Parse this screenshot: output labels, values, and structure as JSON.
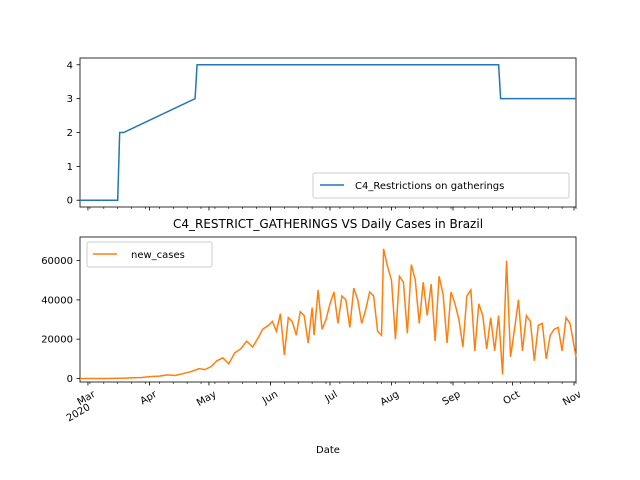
{
  "figure": {
    "title": "C4_RESTRICT_GATHERINGS VS Daily Cases in Brazil",
    "xlabel": "Date"
  },
  "colors": {
    "series1": "#1f77b4",
    "series2": "#ff7f0e"
  },
  "chart_data": [
    {
      "type": "line",
      "title": "",
      "xlabel": "",
      "ylabel": "",
      "xlim": [
        "2020-02-26",
        "2020-11-02"
      ],
      "ylim": [
        -0.2,
        4.2
      ],
      "yticks": [
        0,
        1,
        2,
        3,
        4
      ],
      "legend": "lower-right",
      "grid": false,
      "series": [
        {
          "name": "C4_Restrictions on gatherings",
          "x": [
            "2020-02-26",
            "2020-03-16",
            "2020-03-17",
            "2020-03-19",
            "2020-04-24",
            "2020-04-25",
            "2020-09-24",
            "2020-09-25",
            "2020-11-02"
          ],
          "values": [
            0,
            0,
            2,
            2,
            3,
            4,
            4,
            3,
            3
          ]
        }
      ]
    },
    {
      "type": "line",
      "title": "C4_RESTRICT_GATHERINGS VS Daily Cases in Brazil",
      "xlabel": "Date",
      "ylabel": "",
      "xlim": [
        "2020-02-26",
        "2020-11-02"
      ],
      "ylim": [
        -1800,
        72000
      ],
      "yticks": [
        0,
        20000,
        40000,
        60000
      ],
      "legend": "upper-left",
      "grid": false,
      "xticks": [
        {
          "date": "2020-03-01",
          "label": "Mar",
          "label2": "2020"
        },
        {
          "date": "2020-04-01",
          "label": "Apr"
        },
        {
          "date": "2020-05-01",
          "label": "May"
        },
        {
          "date": "2020-06-01",
          "label": "Jun"
        },
        {
          "date": "2020-07-01",
          "label": "Jul"
        },
        {
          "date": "2020-08-01",
          "label": "Aug"
        },
        {
          "date": "2020-09-01",
          "label": "Sep"
        },
        {
          "date": "2020-10-01",
          "label": "Oct"
        },
        {
          "date": "2020-11-01",
          "label": "Nov"
        }
      ],
      "series": [
        {
          "name": "new_cases",
          "x": [
            "2020-02-26",
            "2020-03-10",
            "2020-03-20",
            "2020-03-28",
            "2020-04-02",
            "2020-04-06",
            "2020-04-10",
            "2020-04-14",
            "2020-04-18",
            "2020-04-22",
            "2020-04-26",
            "2020-04-29",
            "2020-05-02",
            "2020-05-05",
            "2020-05-08",
            "2020-05-11",
            "2020-05-14",
            "2020-05-17",
            "2020-05-20",
            "2020-05-23",
            "2020-05-26",
            "2020-05-28",
            "2020-05-31",
            "2020-06-02",
            "2020-06-04",
            "2020-06-06",
            "2020-06-08",
            "2020-06-10",
            "2020-06-12",
            "2020-06-14",
            "2020-06-16",
            "2020-06-18",
            "2020-06-20",
            "2020-06-22",
            "2020-06-23",
            "2020-06-25",
            "2020-06-27",
            "2020-06-29",
            "2020-07-01",
            "2020-07-03",
            "2020-07-05",
            "2020-07-07",
            "2020-07-09",
            "2020-07-11",
            "2020-07-13",
            "2020-07-15",
            "2020-07-17",
            "2020-07-19",
            "2020-07-21",
            "2020-07-23",
            "2020-07-25",
            "2020-07-27",
            "2020-07-28",
            "2020-07-30",
            "2020-08-01",
            "2020-08-03",
            "2020-08-05",
            "2020-08-07",
            "2020-08-09",
            "2020-08-11",
            "2020-08-13",
            "2020-08-15",
            "2020-08-17",
            "2020-08-19",
            "2020-08-21",
            "2020-08-23",
            "2020-08-25",
            "2020-08-27",
            "2020-08-29",
            "2020-08-31",
            "2020-09-02",
            "2020-09-04",
            "2020-09-06",
            "2020-09-08",
            "2020-09-10",
            "2020-09-12",
            "2020-09-14",
            "2020-09-16",
            "2020-09-18",
            "2020-09-20",
            "2020-09-22",
            "2020-09-24",
            "2020-09-26",
            "2020-09-28",
            "2020-09-30",
            "2020-10-02",
            "2020-10-04",
            "2020-10-06",
            "2020-10-08",
            "2020-10-10",
            "2020-10-12",
            "2020-10-14",
            "2020-10-16",
            "2020-10-18",
            "2020-10-20",
            "2020-10-22",
            "2020-10-24",
            "2020-10-26",
            "2020-10-28",
            "2020-10-30",
            "2020-11-02"
          ],
          "values": [
            0,
            0,
            200,
            500,
            1000,
            1200,
            1800,
            1500,
            2500,
            3500,
            5000,
            4500,
            6000,
            9000,
            10500,
            7500,
            13000,
            15000,
            19000,
            16000,
            21000,
            25000,
            27000,
            29000,
            24000,
            33000,
            12000,
            31000,
            29000,
            22000,
            34000,
            32000,
            18000,
            36000,
            22000,
            45000,
            25000,
            30000,
            38000,
            44000,
            28000,
            42000,
            40000,
            26000,
            46000,
            40000,
            28000,
            35000,
            44000,
            42000,
            24000,
            22000,
            66000,
            57000,
            50000,
            20000,
            52000,
            49000,
            23000,
            58000,
            50000,
            28000,
            49000,
            32000,
            48000,
            19000,
            52000,
            43000,
            18000,
            44000,
            38000,
            30000,
            16000,
            42000,
            45000,
            14000,
            38000,
            32000,
            15000,
            31000,
            14000,
            32000,
            2000,
            60000,
            11000,
            25000,
            40000,
            14000,
            32000,
            29000,
            9000,
            27000,
            28000,
            10000,
            22000,
            25000,
            26000,
            14000,
            31000,
            28000,
            11000
          ]
        }
      ]
    }
  ]
}
